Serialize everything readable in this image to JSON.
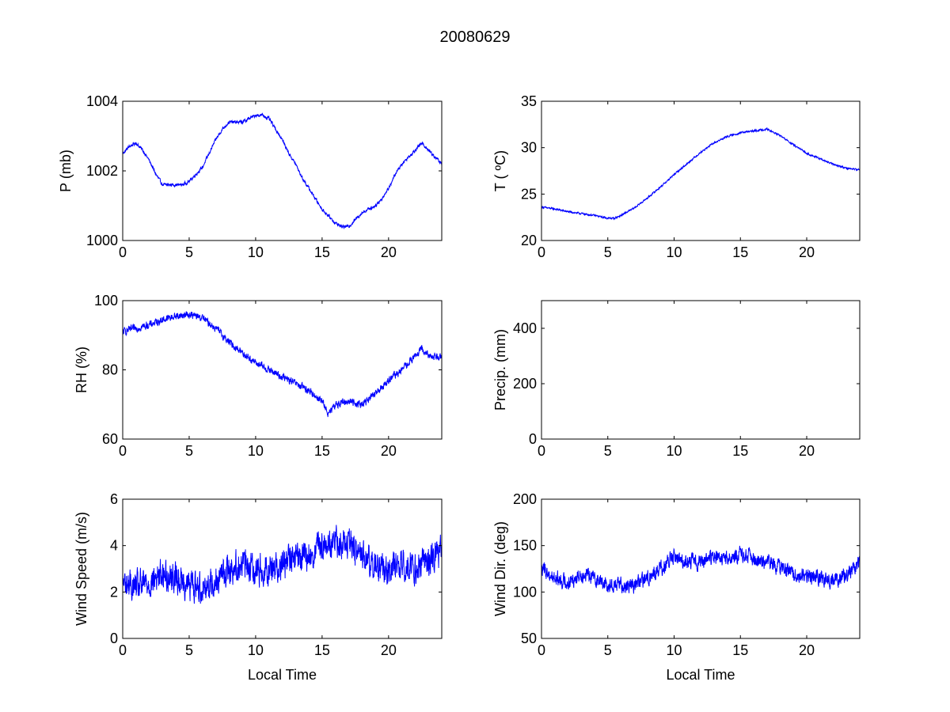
{
  "figure": {
    "title": "20080629",
    "line_color": "#0000ff",
    "axes_color": "#000000",
    "background": "#ffffff"
  },
  "chart_data": [
    {
      "id": "pressure",
      "type": "line",
      "title": "",
      "xlabel": "",
      "ylabel": "P (mb)",
      "xlim": [
        0,
        24
      ],
      "ylim": [
        1000,
        1004
      ],
      "xticks": [
        0,
        5,
        10,
        15,
        20
      ],
      "yticks": [
        1000,
        1002,
        1004
      ],
      "grid": false,
      "noise": 0.04,
      "series": [
        {
          "x": [
            0,
            0.5,
            1.0,
            1.5,
            2.0,
            2.5,
            3.0,
            3.5,
            4.0,
            4.5,
            5.0,
            5.5,
            6.0,
            6.5,
            7.0,
            7.5,
            8.0,
            8.5,
            9.0,
            9.5,
            10.0,
            10.5,
            11.0,
            11.5,
            12.0,
            12.5,
            13.0,
            13.5,
            14.0,
            14.5,
            15.0,
            15.5,
            16.0,
            16.5,
            17.0,
            17.5,
            18.0,
            18.5,
            19.0,
            19.5,
            20.0,
            20.5,
            21.0,
            21.5,
            22.0,
            22.5,
            23.0,
            23.5,
            24.0
          ],
          "y": [
            1002.5,
            1002.7,
            1002.8,
            1002.6,
            1002.3,
            1001.9,
            1001.6,
            1001.6,
            1001.6,
            1001.6,
            1001.7,
            1001.9,
            1002.1,
            1002.5,
            1002.9,
            1003.2,
            1003.4,
            1003.4,
            1003.4,
            1003.5,
            1003.6,
            1003.6,
            1003.5,
            1003.2,
            1002.9,
            1002.5,
            1002.2,
            1001.8,
            1001.5,
            1001.2,
            1000.9,
            1000.7,
            1000.5,
            1000.4,
            1000.4,
            1000.6,
            1000.8,
            1000.9,
            1001.0,
            1001.2,
            1001.5,
            1001.9,
            1002.2,
            1002.4,
            1002.6,
            1002.8,
            1002.6,
            1002.4,
            1002.2
          ]
        }
      ]
    },
    {
      "id": "temperature",
      "type": "line",
      "title": "",
      "xlabel": "",
      "ylabel": "T ( ºC)",
      "xlim": [
        0,
        24
      ],
      "ylim": [
        20,
        35
      ],
      "xticks": [
        0,
        5,
        10,
        15,
        20
      ],
      "yticks": [
        20,
        25,
        30,
        35
      ],
      "grid": false,
      "noise": 0.08,
      "series": [
        {
          "x": [
            0,
            1,
            2,
            3,
            4,
            5,
            5.5,
            6,
            7,
            8,
            9,
            10,
            11,
            12,
            13,
            14,
            15,
            16,
            17,
            18,
            19,
            20,
            21,
            22,
            23,
            24
          ],
          "y": [
            23.6,
            23.4,
            23.1,
            22.9,
            22.7,
            22.4,
            22.4,
            22.7,
            23.5,
            24.6,
            25.8,
            27.1,
            28.3,
            29.5,
            30.5,
            31.2,
            31.6,
            31.8,
            32.0,
            31.3,
            30.3,
            29.4,
            28.8,
            28.2,
            27.8,
            27.6
          ]
        }
      ]
    },
    {
      "id": "humidity",
      "type": "line",
      "title": "",
      "xlabel": "",
      "ylabel": "RH (%)",
      "xlim": [
        0,
        24
      ],
      "ylim": [
        60,
        100
      ],
      "xticks": [
        0,
        5,
        10,
        15,
        20
      ],
      "yticks": [
        60,
        80,
        100
      ],
      "grid": false,
      "noise": 0.9,
      "series": [
        {
          "x": [
            0,
            1,
            2,
            3,
            4,
            5,
            6,
            7,
            8,
            9,
            10,
            11,
            12,
            13,
            14,
            15,
            15.5,
            16,
            17,
            18,
            19,
            20,
            21,
            22,
            22.5,
            23,
            24
          ],
          "y": [
            91,
            92,
            93,
            94.5,
            95.5,
            96,
            95,
            92,
            88,
            85,
            82,
            80,
            78,
            76,
            74,
            71,
            67,
            70,
            71,
            70,
            73,
            77,
            80,
            84,
            86,
            84,
            84
          ]
        }
      ]
    },
    {
      "id": "precipitation",
      "type": "line",
      "title": "",
      "xlabel": "",
      "ylabel": "Precip. (mm)",
      "xlim": [
        0,
        24
      ],
      "ylim": [
        0,
        500
      ],
      "xticks": [
        0,
        5,
        10,
        15,
        20
      ],
      "yticks": [
        0,
        200,
        400
      ],
      "grid": false,
      "noise": 0,
      "series": []
    },
    {
      "id": "wind_speed",
      "type": "line",
      "title": "",
      "xlabel": "Local Time",
      "ylabel": "Wind Speed (m/s)",
      "xlim": [
        0,
        24
      ],
      "ylim": [
        0,
        6
      ],
      "xticks": [
        0,
        5,
        10,
        15,
        20
      ],
      "yticks": [
        0,
        2,
        4,
        6
      ],
      "grid": false,
      "noise": 0.55,
      "series": [
        {
          "x": [
            0,
            1,
            2,
            3,
            4,
            5,
            6,
            7,
            8,
            9,
            10,
            11,
            12,
            13,
            14,
            15,
            16,
            17,
            18,
            19,
            20,
            21,
            22,
            23,
            24
          ],
          "y": [
            2.4,
            2.2,
            2.4,
            2.8,
            2.6,
            2.3,
            2.2,
            2.5,
            3.0,
            3.2,
            3.0,
            3.0,
            3.2,
            3.5,
            3.5,
            4.0,
            4.2,
            4.0,
            3.6,
            3.1,
            3.0,
            3.2,
            3.1,
            3.3,
            3.8
          ]
        }
      ]
    },
    {
      "id": "wind_direction",
      "type": "line",
      "title": "",
      "xlabel": "Local Time",
      "ylabel": "Wind Dir. (deg)",
      "xlim": [
        0,
        24
      ],
      "ylim": [
        50,
        200
      ],
      "xticks": [
        0,
        5,
        10,
        15,
        20
      ],
      "yticks": [
        50,
        100,
        150,
        200
      ],
      "grid": false,
      "noise": 7,
      "series": [
        {
          "x": [
            0,
            1,
            2,
            3,
            4,
            5,
            6,
            7,
            8,
            9,
            10,
            11,
            12,
            13,
            14,
            15,
            16,
            17,
            18,
            19,
            20,
            21,
            22,
            23,
            24
          ],
          "y": [
            125,
            115,
            110,
            120,
            115,
            107,
            108,
            108,
            115,
            125,
            138,
            133,
            132,
            138,
            135,
            140,
            135,
            130,
            128,
            118,
            118,
            115,
            112,
            118,
            132
          ]
        }
      ]
    }
  ]
}
